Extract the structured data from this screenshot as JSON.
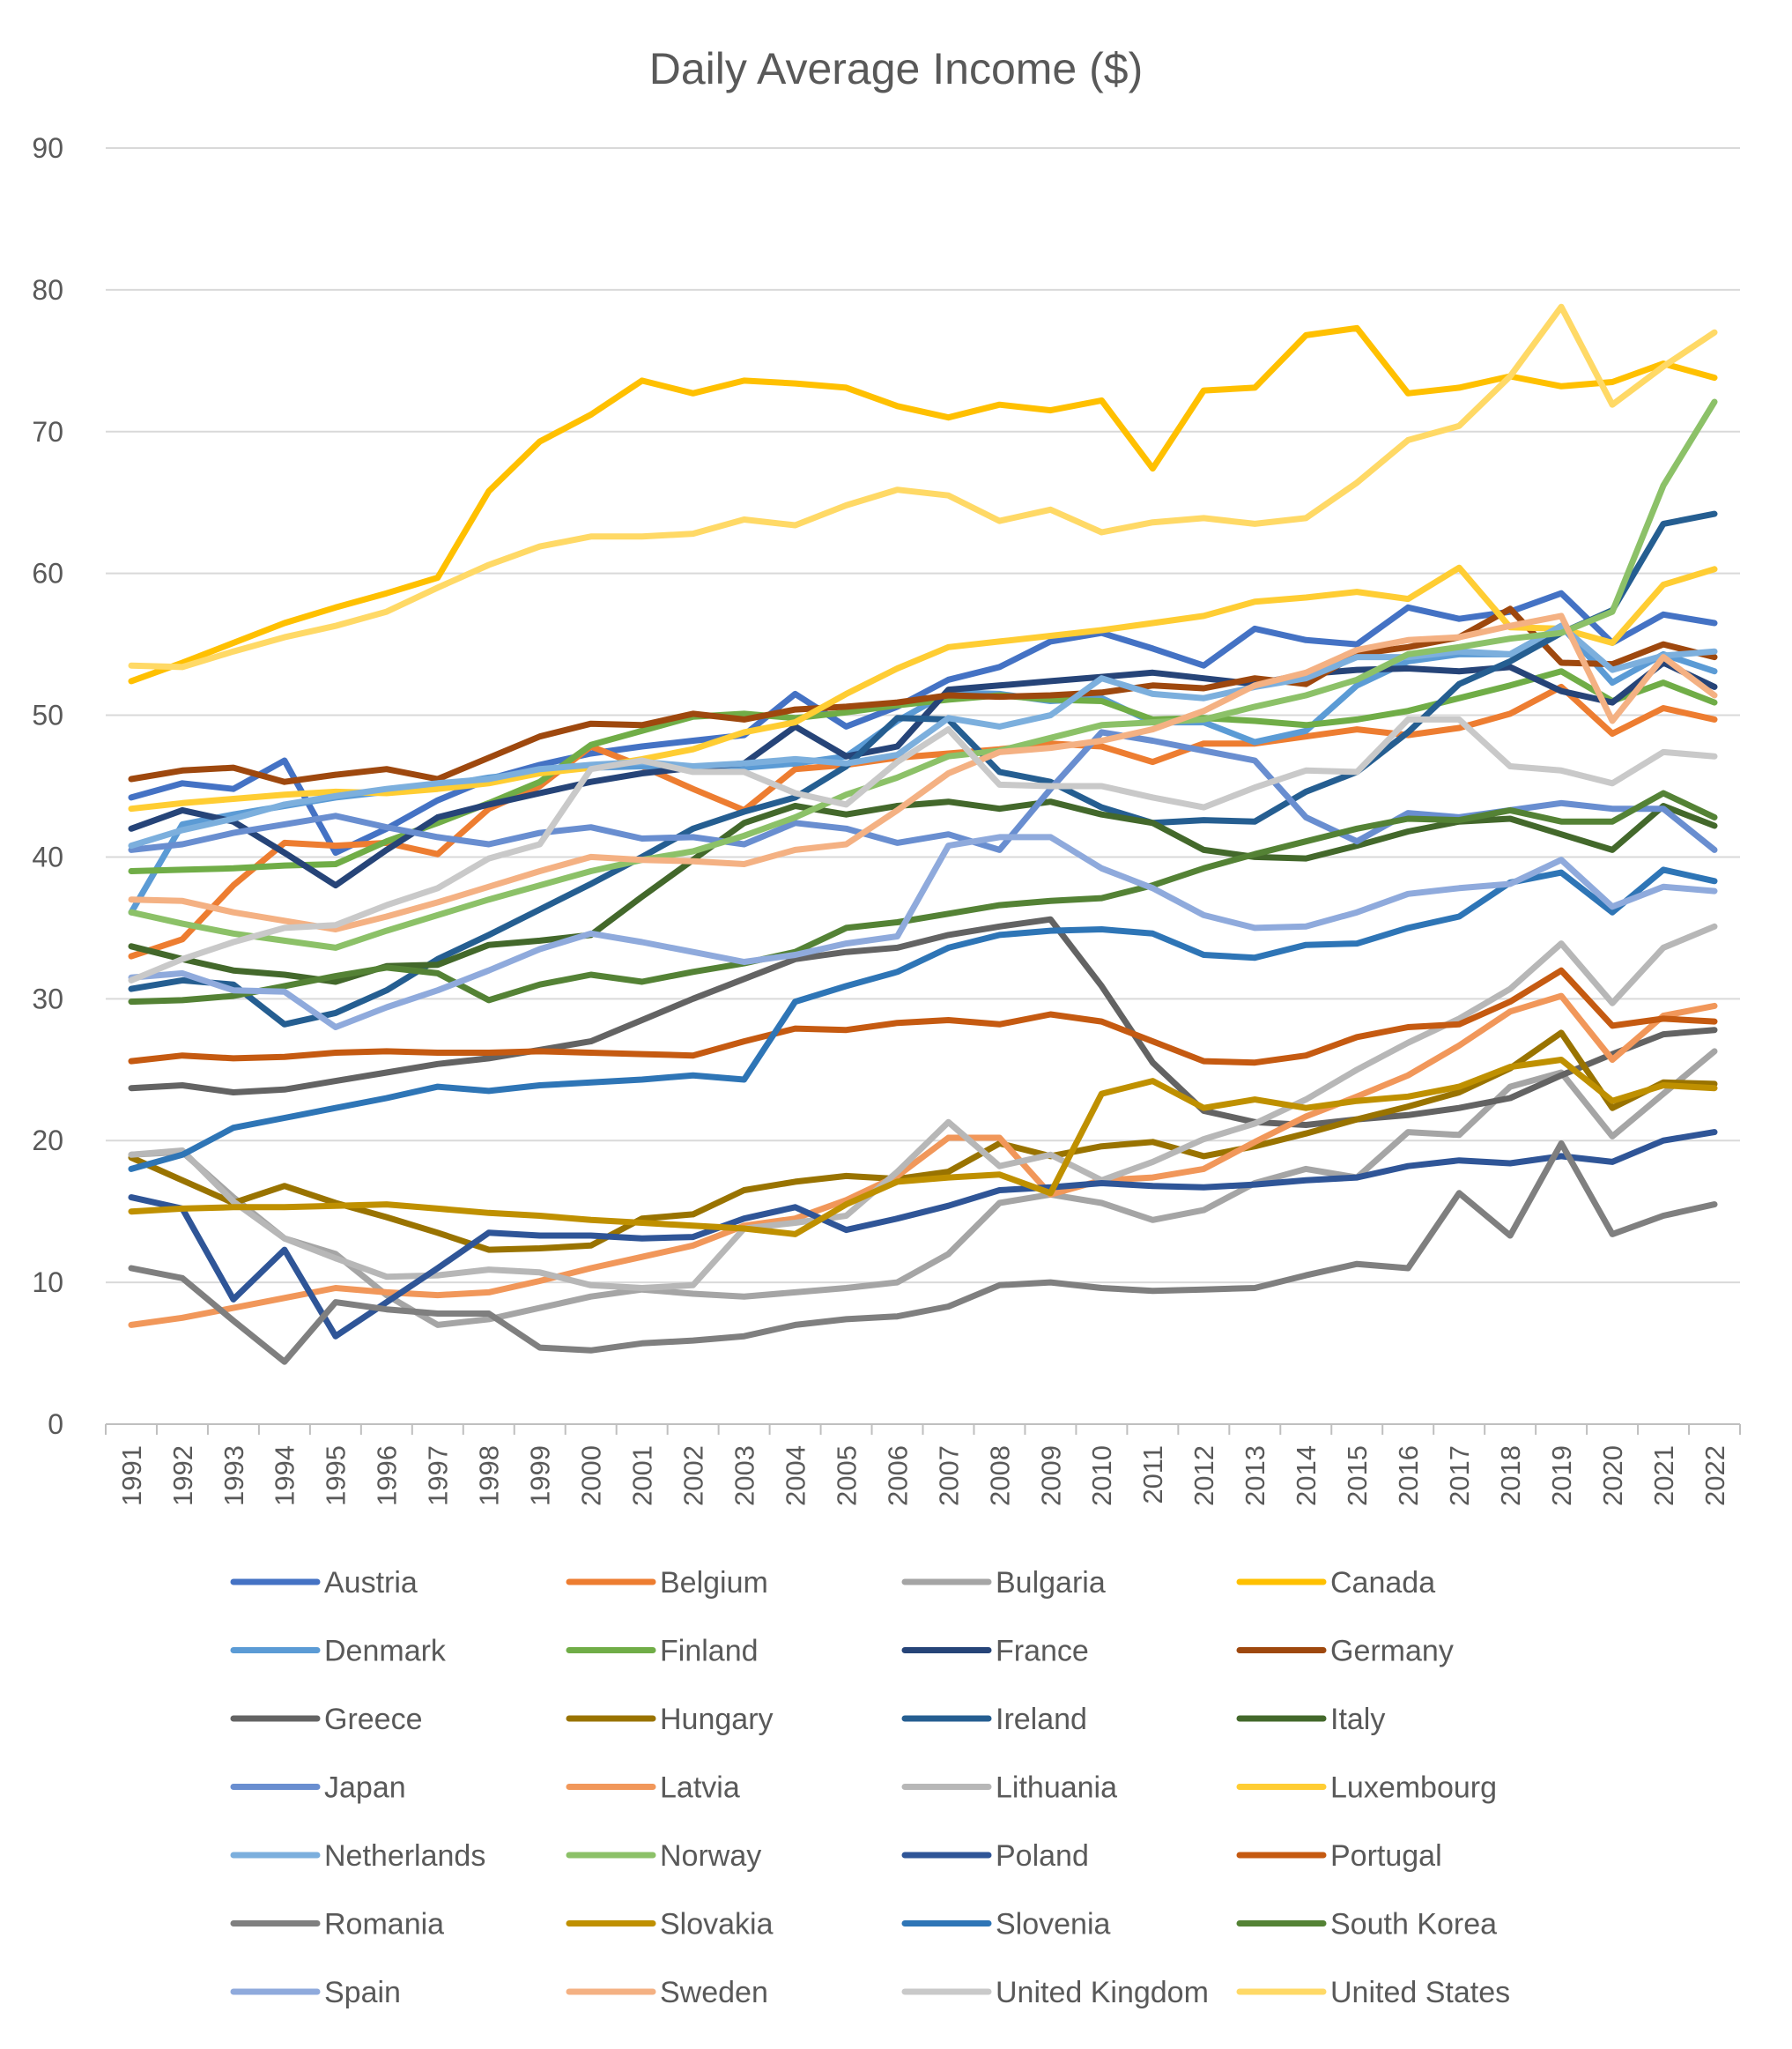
{
  "chart_data": {
    "type": "line",
    "title": "Daily Average Income ($)",
    "xlabel": "",
    "ylabel": "",
    "ylim": [
      0,
      90
    ],
    "yticks": [
      0,
      10,
      20,
      30,
      40,
      50,
      60,
      70,
      80,
      90
    ],
    "grid": true,
    "legend": "bottom",
    "x": [
      "1991",
      "1992",
      "1993",
      "1994",
      "1995",
      "1996",
      "1997",
      "1998",
      "1999",
      "2000",
      "2001",
      "2002",
      "2003",
      "2004",
      "2005",
      "2006",
      "2007",
      "2008",
      "2009",
      "2010",
      "2011",
      "2012",
      "2013",
      "2014",
      "2015",
      "2016",
      "2017",
      "2018",
      "2019",
      "2020",
      "2021",
      "2022"
    ],
    "series": [
      {
        "name": "Austria",
        "color": "#4472C4",
        "values": [
          44.2,
          45.2,
          44.8,
          46.8,
          40.3,
          42.0,
          44.0,
          45.5,
          46.5,
          47.3,
          47.8,
          48.2,
          48.6,
          51.5,
          49.2,
          50.6,
          52.5,
          53.4,
          55.2,
          55.8,
          54.7,
          53.5,
          56.1,
          55.3,
          55.0,
          57.6,
          56.8,
          57.3,
          58.6,
          55.1,
          57.1,
          56.5
        ]
      },
      {
        "name": "Belgium",
        "color": "#ED7D31",
        "values": [
          33.0,
          34.2,
          38.0,
          41.0,
          40.8,
          41.0,
          40.2,
          43.4,
          45.0,
          47.8,
          46.4,
          44.8,
          43.3,
          46.2,
          46.5,
          47.0,
          47.3,
          47.6,
          48.0,
          47.8,
          46.7,
          48.0,
          48.0,
          48.5,
          49.0,
          48.6,
          49.1,
          50.1,
          52.0,
          48.7,
          50.5,
          49.7
        ]
      },
      {
        "name": "Bulgaria",
        "color": "#A5A5A5",
        "values": [
          19.0,
          19.2,
          16.0,
          13.1,
          12.0,
          9.1,
          7.0,
          7.4,
          8.2,
          9.0,
          9.5,
          9.2,
          9.0,
          9.3,
          9.6,
          10.0,
          12.0,
          15.6,
          16.2,
          15.6,
          14.4,
          15.1,
          17.0,
          18.0,
          17.4,
          20.6,
          20.4,
          23.8,
          24.8,
          20.3,
          23.3,
          26.3
        ]
      },
      {
        "name": "Canada",
        "color": "#FFC000",
        "values": [
          52.4,
          53.7,
          55.1,
          56.5,
          57.6,
          58.6,
          59.7,
          65.8,
          69.3,
          71.2,
          73.6,
          72.7,
          73.6,
          73.4,
          73.1,
          71.8,
          71.0,
          71.9,
          71.5,
          72.2,
          67.4,
          72.9,
          73.1,
          76.8,
          77.3,
          72.7,
          73.1,
          73.9,
          73.2,
          73.5,
          74.8,
          73.8
        ]
      },
      {
        "name": "Denmark",
        "color": "#5B9BD5",
        "values": [
          36.1,
          42.3,
          43.0,
          43.6,
          44.2,
          44.6,
          45.0,
          45.6,
          46.0,
          46.3,
          46.4,
          46.2,
          46.3,
          46.6,
          47.1,
          49.6,
          51.6,
          51.5,
          51.0,
          51.2,
          49.5,
          49.5,
          48.1,
          48.9,
          52.1,
          53.8,
          54.3,
          54.3,
          56.3,
          52.3,
          54.3,
          53.1
        ]
      },
      {
        "name": "Finland",
        "color": "#70AD47",
        "values": [
          39.0,
          39.1,
          39.2,
          39.4,
          39.5,
          41.1,
          42.4,
          43.8,
          45.3,
          47.9,
          48.9,
          49.9,
          50.1,
          49.8,
          50.2,
          50.7,
          51.1,
          51.4,
          51.1,
          51.0,
          49.7,
          49.8,
          49.6,
          49.3,
          49.7,
          50.3,
          51.2,
          52.1,
          53.1,
          51.0,
          52.3,
          50.9
        ]
      },
      {
        "name": "France",
        "color": "#264478",
        "values": [
          42.0,
          43.3,
          42.5,
          40.3,
          38.0,
          40.5,
          42.8,
          43.7,
          44.5,
          45.3,
          45.9,
          46.3,
          46.6,
          49.2,
          47.1,
          47.8,
          51.8,
          52.1,
          52.4,
          52.7,
          53.0,
          52.6,
          52.2,
          52.9,
          53.2,
          53.3,
          53.1,
          53.4,
          51.7,
          50.9,
          53.7,
          52.0
        ]
      },
      {
        "name": "Germany",
        "color": "#9E480E",
        "values": [
          45.5,
          46.1,
          46.3,
          45.3,
          45.8,
          46.2,
          45.5,
          47.0,
          48.5,
          49.4,
          49.3,
          50.1,
          49.7,
          50.4,
          50.6,
          50.9,
          51.4,
          51.3,
          51.4,
          51.6,
          52.1,
          51.9,
          52.6,
          52.2,
          54.3,
          54.8,
          55.5,
          57.5,
          53.7,
          53.6,
          55.0,
          54.1
        ]
      },
      {
        "name": "Greece",
        "color": "#636363",
        "values": [
          23.7,
          23.9,
          23.4,
          23.6,
          24.2,
          24.8,
          25.4,
          25.8,
          26.4,
          27.0,
          28.5,
          30.0,
          31.4,
          32.8,
          33.3,
          33.6,
          34.5,
          35.1,
          35.6,
          30.9,
          25.5,
          22.1,
          21.3,
          21.1,
          21.5,
          21.8,
          22.3,
          23.0,
          24.6,
          26.1,
          27.5,
          27.8
        ]
      },
      {
        "name": "Hungary",
        "color": "#997300",
        "values": [
          18.8,
          17.2,
          15.6,
          16.8,
          15.6,
          14.6,
          13.5,
          12.3,
          12.4,
          12.6,
          14.5,
          14.8,
          16.5,
          17.1,
          17.5,
          17.3,
          17.8,
          19.8,
          18.9,
          19.6,
          19.9,
          18.9,
          19.6,
          20.5,
          21.5,
          22.4,
          23.4,
          25.1,
          27.6,
          22.3,
          24.1,
          24.0
        ]
      },
      {
        "name": "Ireland",
        "color": "#255E91",
        "values": [
          30.7,
          31.3,
          31.0,
          28.2,
          29.0,
          30.6,
          32.8,
          34.5,
          36.3,
          38.1,
          40.0,
          42.0,
          43.2,
          44.2,
          46.4,
          49.8,
          49.7,
          46.0,
          45.3,
          43.5,
          42.4,
          42.6,
          42.5,
          44.6,
          46.0,
          48.8,
          52.2,
          53.8,
          55.8,
          57.4,
          63.5,
          64.2
        ]
      },
      {
        "name": "Italy",
        "color": "#43682B",
        "values": [
          33.7,
          32.8,
          32.0,
          31.7,
          31.2,
          32.3,
          32.4,
          33.8,
          34.1,
          34.5,
          37.2,
          39.8,
          42.4,
          43.6,
          43.0,
          43.6,
          43.9,
          43.4,
          43.9,
          43.0,
          42.4,
          40.5,
          40.0,
          39.9,
          40.8,
          41.8,
          42.5,
          42.7,
          41.6,
          40.5,
          43.6,
          42.2
        ]
      },
      {
        "name": "Japan",
        "color": "#698ED0",
        "values": [
          40.5,
          40.9,
          41.7,
          42.3,
          42.9,
          42.1,
          41.4,
          40.9,
          41.7,
          42.1,
          41.3,
          41.4,
          40.9,
          42.4,
          42.0,
          41.0,
          41.6,
          40.5,
          44.8,
          48.8,
          48.2,
          47.5,
          46.8,
          42.8,
          41.1,
          43.1,
          42.8,
          43.3,
          43.8,
          43.4,
          43.4,
          40.5
        ]
      },
      {
        "name": "Latvia",
        "color": "#F1975A",
        "values": [
          7.0,
          7.5,
          8.2,
          8.9,
          9.6,
          9.3,
          9.1,
          9.3,
          10.1,
          11.0,
          11.8,
          12.6,
          14.0,
          14.5,
          15.8,
          17.5,
          20.2,
          20.2,
          16.2,
          17.2,
          17.4,
          18.0,
          19.9,
          21.7,
          23.1,
          24.6,
          26.7,
          29.1,
          30.2,
          25.7,
          28.8,
          29.5
        ]
      },
      {
        "name": "Lithuania",
        "color": "#B7B7B7",
        "values": [
          19.0,
          19.3,
          15.7,
          13.1,
          11.7,
          10.4,
          10.5,
          10.9,
          10.7,
          9.8,
          9.6,
          9.8,
          13.8,
          14.2,
          14.7,
          17.8,
          21.3,
          18.2,
          19.0,
          17.2,
          18.5,
          20.1,
          21.2,
          22.9,
          25.0,
          26.9,
          28.6,
          30.7,
          33.9,
          29.7,
          33.6,
          35.1
        ]
      },
      {
        "name": "Luxembourg",
        "color": "#FFCD33",
        "values": [
          43.4,
          43.8,
          44.1,
          44.4,
          44.6,
          44.5,
          44.8,
          45.2,
          45.9,
          46.3,
          46.9,
          47.6,
          48.8,
          49.5,
          51.5,
          53.3,
          54.8,
          55.2,
          55.6,
          56.0,
          56.5,
          57.0,
          58.0,
          58.3,
          58.7,
          58.2,
          60.4,
          56.2,
          56.1,
          55.1,
          59.2,
          60.3
        ]
      },
      {
        "name": "Netherlands",
        "color": "#7CAFDD",
        "values": [
          40.8,
          41.9,
          42.7,
          43.7,
          44.3,
          44.8,
          45.2,
          45.5,
          46.2,
          46.5,
          46.7,
          46.4,
          46.6,
          46.9,
          46.6,
          47.2,
          49.8,
          49.2,
          50.0,
          52.6,
          51.5,
          51.2,
          52.0,
          52.6,
          54.1,
          54.1,
          54.5,
          54.3,
          56.3,
          53.2,
          54.2,
          54.5
        ]
      },
      {
        "name": "Norway",
        "color": "#8CC168",
        "values": [
          36.1,
          35.3,
          34.6,
          34.1,
          33.6,
          34.8,
          35.9,
          37.0,
          38.0,
          39.0,
          39.8,
          40.4,
          41.5,
          42.8,
          44.4,
          45.6,
          47.1,
          47.5,
          48.4,
          49.3,
          49.5,
          49.7,
          50.6,
          51.4,
          52.5,
          54.3,
          54.8,
          55.4,
          55.8,
          57.3,
          66.2,
          72.1
        ]
      },
      {
        "name": "Poland",
        "color": "#2F5597",
        "values": [
          16.0,
          15.2,
          8.8,
          12.3,
          6.2,
          8.6,
          11.0,
          13.5,
          13.3,
          13.3,
          13.1,
          13.2,
          14.5,
          15.3,
          13.7,
          14.5,
          15.4,
          16.5,
          16.7,
          17.0,
          16.8,
          16.7,
          16.9,
          17.2,
          17.4,
          18.2,
          18.6,
          18.4,
          18.9,
          18.5,
          20.0,
          20.6
        ]
      },
      {
        "name": "Portugal",
        "color": "#C55A11",
        "values": [
          25.6,
          26.0,
          25.8,
          25.9,
          26.2,
          26.3,
          26.2,
          26.2,
          26.3,
          26.2,
          26.1,
          26.0,
          27.0,
          27.9,
          27.8,
          28.3,
          28.5,
          28.2,
          28.9,
          28.4,
          27.0,
          25.6,
          25.5,
          26.0,
          27.3,
          28.0,
          28.2,
          29.8,
          32.0,
          28.1,
          28.6,
          28.4
        ]
      },
      {
        "name": "Romania",
        "color": "#7F7F7F",
        "values": [
          11.0,
          10.3,
          7.3,
          4.4,
          8.6,
          8.1,
          7.8,
          7.8,
          5.4,
          5.2,
          5.7,
          5.9,
          6.2,
          7.0,
          7.4,
          7.6,
          8.3,
          9.8,
          10.0,
          9.6,
          9.4,
          9.5,
          9.6,
          10.5,
          11.3,
          11.0,
          16.3,
          13.3,
          19.8,
          13.4,
          14.7,
          15.5
        ]
      },
      {
        "name": "Slovakia",
        "color": "#BF9000",
        "values": [
          15.0,
          15.2,
          15.3,
          15.3,
          15.4,
          15.5,
          15.2,
          14.9,
          14.7,
          14.4,
          14.2,
          14.0,
          13.8,
          13.4,
          15.5,
          17.1,
          17.4,
          17.6,
          16.3,
          23.3,
          24.2,
          22.3,
          22.9,
          22.3,
          22.8,
          23.1,
          23.8,
          25.2,
          25.7,
          22.8,
          23.9,
          23.7
        ]
      },
      {
        "name": "Slovenia",
        "color": "#2E75B6",
        "values": [
          18.0,
          19.0,
          20.9,
          21.6,
          22.3,
          23.0,
          23.8,
          23.5,
          23.9,
          24.1,
          24.3,
          24.6,
          24.3,
          29.8,
          30.9,
          31.9,
          33.6,
          34.5,
          34.8,
          34.9,
          34.6,
          33.1,
          32.9,
          33.8,
          33.9,
          35.0,
          35.8,
          38.2,
          38.9,
          36.1,
          39.1,
          38.3
        ]
      },
      {
        "name": "South Korea",
        "color": "#548235",
        "values": [
          29.8,
          29.9,
          30.2,
          30.9,
          31.6,
          32.2,
          31.8,
          29.9,
          31.0,
          31.7,
          31.2,
          31.9,
          32.5,
          33.3,
          35.0,
          35.4,
          36.0,
          36.6,
          36.9,
          37.1,
          38.0,
          39.2,
          40.2,
          41.1,
          42.0,
          42.7,
          42.6,
          43.3,
          42.5,
          42.5,
          44.5,
          42.8
        ]
      },
      {
        "name": "Spain",
        "color": "#8FAADC",
        "values": [
          31.5,
          31.8,
          30.6,
          30.5,
          28.0,
          29.4,
          30.6,
          32.0,
          33.5,
          34.6,
          34.0,
          33.3,
          32.6,
          33.1,
          33.9,
          34.4,
          40.8,
          41.4,
          41.4,
          39.2,
          37.8,
          35.9,
          35.0,
          35.1,
          36.1,
          37.4,
          37.8,
          38.1,
          39.8,
          36.5,
          37.9,
          37.6
        ]
      },
      {
        "name": "Sweden",
        "color": "#F4B183",
        "values": [
          37.0,
          36.9,
          36.1,
          35.5,
          34.9,
          35.8,
          36.8,
          37.9,
          39.0,
          40.0,
          39.8,
          39.7,
          39.5,
          40.5,
          40.9,
          43.3,
          45.9,
          47.4,
          47.7,
          48.2,
          49.0,
          50.3,
          52.1,
          53.0,
          54.6,
          55.3,
          55.5,
          56.3,
          57.0,
          49.6,
          54.1,
          51.4
        ]
      },
      {
        "name": "United Kingdom",
        "color": "#C9C9C9",
        "values": [
          31.3,
          32.8,
          34.0,
          35.0,
          35.2,
          36.6,
          37.8,
          39.9,
          40.9,
          46.2,
          46.8,
          46.0,
          46.0,
          44.5,
          43.7,
          46.7,
          49.0,
          45.1,
          45.0,
          45.0,
          44.2,
          43.5,
          44.9,
          46.1,
          46.0,
          49.7,
          49.7,
          46.4,
          46.1,
          45.2,
          47.4,
          47.1
        ]
      },
      {
        "name": "United States",
        "color": "#FFD966",
        "values": [
          53.5,
          53.4,
          54.5,
          55.5,
          56.3,
          57.3,
          59.0,
          60.6,
          61.9,
          62.6,
          62.6,
          62.8,
          63.8,
          63.4,
          64.8,
          65.9,
          65.5,
          63.7,
          64.5,
          62.9,
          63.6,
          63.9,
          63.5,
          63.9,
          66.4,
          69.4,
          70.4,
          73.9,
          78.8,
          71.9,
          74.6,
          77.0
        ]
      }
    ]
  }
}
